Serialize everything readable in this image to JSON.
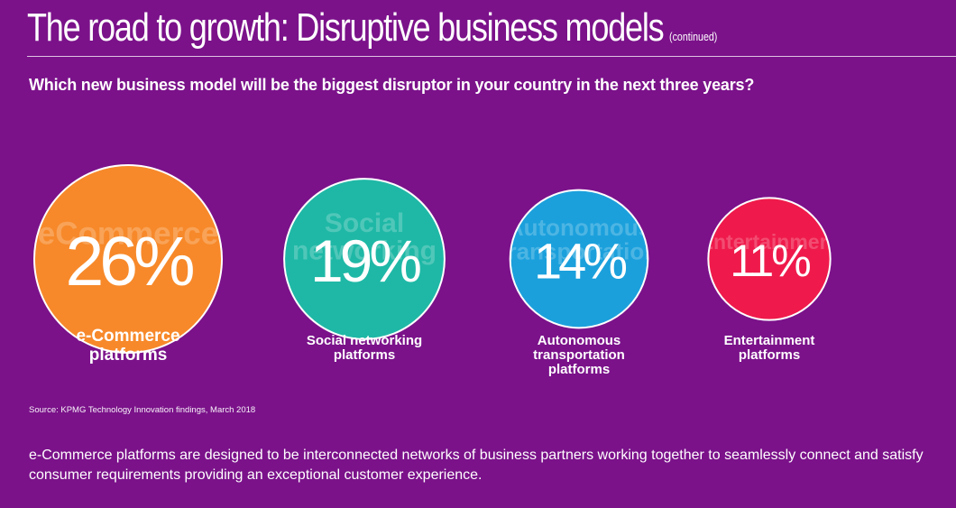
{
  "header": {
    "title": "The road to growth: Disruptive business models",
    "title_suffix": "(continued)"
  },
  "question": "Which new business model will be the biggest disruptor in your country in the next three years?",
  "source": "Source: KPMG Technology Innovation findings, March 2018",
  "summary": "e-Commerce platforms are designed to be interconnected networks of business partners working together to seamlessly connect and satisfy consumer requirements providing an exceptional customer experience.",
  "chart_data": {
    "type": "bubble",
    "title": "Which new business model will be the biggest disruptor in your country in the next three years?",
    "unit": "%",
    "items": [
      {
        "category": "e-Commerce platforms",
        "value": 26,
        "value_label": "26%",
        "background_text": "eCommerce",
        "color": "#f7892a"
      },
      {
        "category": "Social networking platforms",
        "value": 19,
        "value_label": "19%",
        "background_text": "Social networking",
        "color": "#1fb8a6"
      },
      {
        "category": "Autonomous transportation platforms",
        "value": 14,
        "value_label": "14%",
        "background_text": "Autonomous transportation",
        "color": "#1ba0dc"
      },
      {
        "category": "Entertainment platforms",
        "value": 11,
        "value_label": "11%",
        "background_text": "Entertainment",
        "color": "#ef1a4b"
      }
    ]
  }
}
